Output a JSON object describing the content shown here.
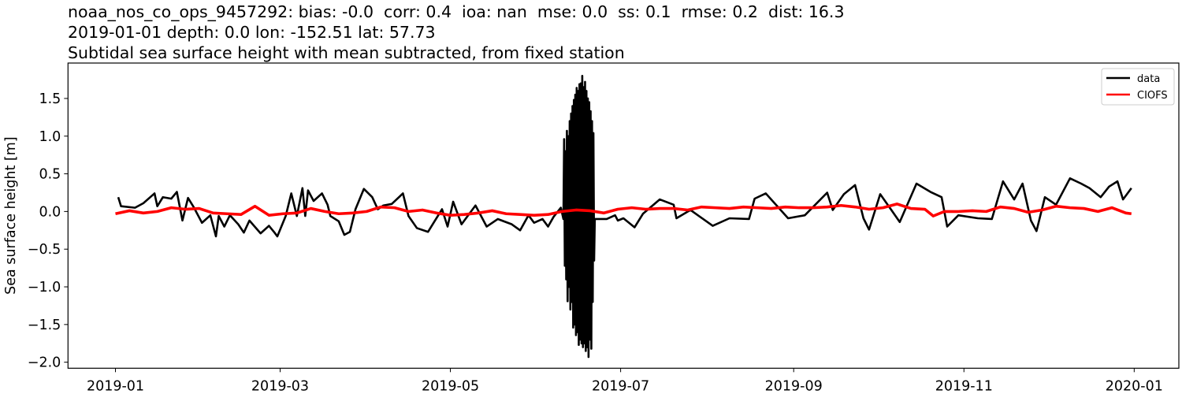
{
  "chart_data": {
    "type": "line",
    "title_lines": [
      "noaa_nos_co_ops_9457292: bias: -0.0  corr: 0.4  ioa: nan  mse: 0.0  ss: 0.1  rmse: 0.2  dist: 16.3",
      "2019-01-01 depth: 0.0 lon: -152.51 lat: 57.73",
      "Subtidal sea surface height with mean subtracted, from fixed station"
    ],
    "xlabel": "",
    "ylabel": "Sea surface height [m]",
    "xlim": [
      "2018-12-15",
      "2020-01-17"
    ],
    "ylim": [
      -2.08,
      1.97
    ],
    "xticks": [
      "2019-01",
      "2019-03",
      "2019-05",
      "2019-07",
      "2019-09",
      "2019-11",
      "2020-01"
    ],
    "yticks": [
      1.5,
      1.0,
      0.5,
      0.0,
      -0.5,
      -1.0,
      -1.5,
      -2.0
    ],
    "ytick_labels": [
      "1.5",
      "1.0",
      "0.5",
      "0.0",
      "−0.5",
      "−1.0",
      "−1.5",
      "−2.0"
    ],
    "grid": false,
    "legend_position": "top-right",
    "series": [
      {
        "name": "data",
        "color": "#000000",
        "points": [
          [
            "2019-01-02",
            0.19
          ],
          [
            "2019-01-03",
            0.07
          ],
          [
            "2019-01-08",
            0.05
          ],
          [
            "2019-01-11",
            0.11
          ],
          [
            "2019-01-15",
            0.24
          ],
          [
            "2019-01-16",
            0.07
          ],
          [
            "2019-01-18",
            0.19
          ],
          [
            "2019-01-21",
            0.17
          ],
          [
            "2019-01-23",
            0.26
          ],
          [
            "2019-01-25",
            -0.12
          ],
          [
            "2019-01-27",
            0.18
          ],
          [
            "2019-01-29",
            0.06
          ],
          [
            "2019-02-01",
            -0.15
          ],
          [
            "2019-02-04",
            -0.05
          ],
          [
            "2019-02-06",
            -0.33
          ],
          [
            "2019-02-07",
            -0.06
          ],
          [
            "2019-02-09",
            -0.2
          ],
          [
            "2019-02-11",
            -0.05
          ],
          [
            "2019-02-14",
            -0.17
          ],
          [
            "2019-02-16",
            -0.28
          ],
          [
            "2019-02-18",
            -0.12
          ],
          [
            "2019-02-22",
            -0.29
          ],
          [
            "2019-02-25",
            -0.19
          ],
          [
            "2019-02-27",
            -0.28
          ],
          [
            "2019-02-28",
            -0.33
          ],
          [
            "2019-03-03",
            -0.06
          ],
          [
            "2019-03-05",
            0.24
          ],
          [
            "2019-03-07",
            -0.06
          ],
          [
            "2019-03-09",
            0.31
          ],
          [
            "2019-03-10",
            -0.06
          ],
          [
            "2019-03-11",
            0.28
          ],
          [
            "2019-03-13",
            0.14
          ],
          [
            "2019-03-16",
            0.24
          ],
          [
            "2019-03-18",
            0.09
          ],
          [
            "2019-03-19",
            -0.06
          ],
          [
            "2019-03-22",
            -0.13
          ],
          [
            "2019-03-24",
            -0.31
          ],
          [
            "2019-03-26",
            -0.27
          ],
          [
            "2019-03-28",
            0.03
          ],
          [
            "2019-03-31",
            0.3
          ],
          [
            "2019-04-03",
            0.19
          ],
          [
            "2019-04-05",
            0.03
          ],
          [
            "2019-04-07",
            0.08
          ],
          [
            "2019-04-10",
            0.1
          ],
          [
            "2019-04-14",
            0.24
          ],
          [
            "2019-04-16",
            -0.06
          ],
          [
            "2019-04-19",
            -0.22
          ],
          [
            "2019-04-23",
            -0.27
          ],
          [
            "2019-04-25",
            -0.15
          ],
          [
            "2019-04-28",
            0.03
          ],
          [
            "2019-04-30",
            -0.2
          ],
          [
            "2019-05-02",
            0.13
          ],
          [
            "2019-05-05",
            -0.17
          ],
          [
            "2019-05-09",
            0.03
          ],
          [
            "2019-05-10",
            0.08
          ],
          [
            "2019-05-14",
            -0.2
          ],
          [
            "2019-05-18",
            -0.1
          ],
          [
            "2019-05-23",
            -0.17
          ],
          [
            "2019-05-26",
            -0.25
          ],
          [
            "2019-05-29",
            -0.05
          ],
          [
            "2019-05-31",
            -0.15
          ],
          [
            "2019-06-03",
            -0.1
          ],
          [
            "2019-06-05",
            -0.2
          ],
          [
            "2019-06-07",
            -0.07
          ],
          [
            "2019-06-09T14:00",
            0.05
          ],
          [
            "2019-06-10T12:00",
            -0.1
          ],
          [
            "2019-06-10T18:00",
            0.96
          ],
          [
            "2019-06-11T00:00",
            -0.72
          ],
          [
            "2019-06-11T06:00",
            0.8
          ],
          [
            "2019-06-11T12:00",
            -0.9
          ],
          [
            "2019-06-11T18:00",
            1.07
          ],
          [
            "2019-06-12T00:00",
            -1.19
          ],
          [
            "2019-06-12T06:00",
            1.0
          ],
          [
            "2019-06-12T12:00",
            -1.0
          ],
          [
            "2019-06-12T18:00",
            1.2
          ],
          [
            "2019-06-13T00:00",
            -1.3
          ],
          [
            "2019-06-13T06:00",
            1.3
          ],
          [
            "2019-06-13T12:00",
            -1.2
          ],
          [
            "2019-06-13T18:00",
            1.4
          ],
          [
            "2019-06-14T00:00",
            -1.54
          ],
          [
            "2019-06-14T06:00",
            1.48
          ],
          [
            "2019-06-14T12:00",
            -1.5
          ],
          [
            "2019-06-14T18:00",
            1.55
          ],
          [
            "2019-06-15T00:00",
            -1.64
          ],
          [
            "2019-06-15T06:00",
            1.64
          ],
          [
            "2019-06-15T12:00",
            -1.6
          ],
          [
            "2019-06-15T18:00",
            1.6
          ],
          [
            "2019-06-16T00:00",
            -1.77
          ],
          [
            "2019-06-16T06:00",
            1.69
          ],
          [
            "2019-06-16T12:00",
            -1.7
          ],
          [
            "2019-06-16T18:00",
            1.7
          ],
          [
            "2019-06-17T00:00",
            -1.75
          ],
          [
            "2019-06-17T06:00",
            1.8
          ],
          [
            "2019-06-17T12:00",
            -1.8
          ],
          [
            "2019-06-17T18:00",
            1.65
          ],
          [
            "2019-06-18T00:00",
            -1.75
          ],
          [
            "2019-06-18T06:00",
            1.72
          ],
          [
            "2019-06-18T12:00",
            -1.85
          ],
          [
            "2019-06-18T18:00",
            1.6
          ],
          [
            "2019-06-19T00:00",
            -1.8
          ],
          [
            "2019-06-19T06:00",
            1.5
          ],
          [
            "2019-06-19T12:00",
            -1.93
          ],
          [
            "2019-06-19T18:00",
            1.45
          ],
          [
            "2019-06-20T00:00",
            -1.7
          ],
          [
            "2019-06-20T06:00",
            1.33
          ],
          [
            "2019-06-20T12:00",
            -1.82
          ],
          [
            "2019-06-20T18:00",
            1.2
          ],
          [
            "2019-06-21T00:00",
            -1.2
          ],
          [
            "2019-06-21T06:00",
            1.04
          ],
          [
            "2019-06-21T12:00",
            -0.65
          ],
          [
            "2019-06-21T18:00",
            -0.1
          ],
          [
            "2019-06-23",
            -0.1
          ],
          [
            "2019-06-26",
            -0.1
          ],
          [
            "2019-06-29",
            -0.05
          ],
          [
            "2019-06-30",
            -0.12
          ],
          [
            "2019-07-02",
            -0.09
          ],
          [
            "2019-07-06",
            -0.21
          ],
          [
            "2019-07-09",
            -0.03
          ],
          [
            "2019-07-15",
            0.16
          ],
          [
            "2019-07-20",
            0.09
          ],
          [
            "2019-07-21",
            -0.09
          ],
          [
            "2019-07-26",
            0.02
          ],
          [
            "2019-08-03",
            -0.19
          ],
          [
            "2019-08-09",
            -0.09
          ],
          [
            "2019-08-16",
            -0.1
          ],
          [
            "2019-08-18",
            0.17
          ],
          [
            "2019-08-22",
            0.24
          ],
          [
            "2019-08-30",
            -0.09
          ],
          [
            "2019-09-05",
            -0.05
          ],
          [
            "2019-09-13",
            0.25
          ],
          [
            "2019-09-15",
            0.02
          ],
          [
            "2019-09-19",
            0.23
          ],
          [
            "2019-09-23",
            0.35
          ],
          [
            "2019-09-26",
            -0.09
          ],
          [
            "2019-09-28",
            -0.24
          ],
          [
            "2019-10-02",
            0.23
          ],
          [
            "2019-10-06",
            0.02
          ],
          [
            "2019-10-09",
            -0.14
          ],
          [
            "2019-10-15",
            0.37
          ],
          [
            "2019-10-20",
            0.26
          ],
          [
            "2019-10-24",
            0.19
          ],
          [
            "2019-10-26",
            -0.2
          ],
          [
            "2019-10-30",
            -0.05
          ],
          [
            "2019-11-06",
            -0.09
          ],
          [
            "2019-11-11",
            -0.1
          ],
          [
            "2019-11-15",
            0.4
          ],
          [
            "2019-11-19",
            0.16
          ],
          [
            "2019-11-22",
            0.37
          ],
          [
            "2019-11-25",
            -0.12
          ],
          [
            "2019-11-27",
            -0.26
          ],
          [
            "2019-11-30",
            0.19
          ],
          [
            "2019-12-04",
            0.09
          ],
          [
            "2019-12-09",
            0.44
          ],
          [
            "2019-12-13",
            0.37
          ],
          [
            "2019-12-16",
            0.31
          ],
          [
            "2019-12-20",
            0.19
          ],
          [
            "2019-12-23",
            0.33
          ],
          [
            "2019-12-26",
            0.4
          ],
          [
            "2019-12-28",
            0.16
          ],
          [
            "2019-12-31",
            0.31
          ]
        ]
      },
      {
        "name": "CIOFS",
        "color": "#ff0000",
        "points": [
          [
            "2019-01-01",
            -0.03
          ],
          [
            "2019-01-06",
            0.01
          ],
          [
            "2019-01-11",
            -0.02
          ],
          [
            "2019-01-16",
            0.0
          ],
          [
            "2019-01-21",
            0.05
          ],
          [
            "2019-01-26",
            0.03
          ],
          [
            "2019-01-31",
            0.04
          ],
          [
            "2019-02-05",
            -0.02
          ],
          [
            "2019-02-10",
            -0.03
          ],
          [
            "2019-02-15",
            -0.04
          ],
          [
            "2019-02-20",
            0.07
          ],
          [
            "2019-02-25",
            -0.05
          ],
          [
            "2019-03-02",
            -0.03
          ],
          [
            "2019-03-07",
            -0.02
          ],
          [
            "2019-03-12",
            0.04
          ],
          [
            "2019-03-17",
            0.0
          ],
          [
            "2019-03-22",
            -0.03
          ],
          [
            "2019-03-27",
            -0.02
          ],
          [
            "2019-04-01",
            0.0
          ],
          [
            "2019-04-06",
            0.06
          ],
          [
            "2019-04-11",
            0.05
          ],
          [
            "2019-04-16",
            0.0
          ],
          [
            "2019-04-21",
            0.02
          ],
          [
            "2019-04-26",
            -0.02
          ],
          [
            "2019-05-01",
            -0.05
          ],
          [
            "2019-05-06",
            -0.04
          ],
          [
            "2019-05-11",
            -0.02
          ],
          [
            "2019-05-16",
            0.01
          ],
          [
            "2019-05-21",
            -0.03
          ],
          [
            "2019-05-26",
            -0.04
          ],
          [
            "2019-05-31",
            -0.05
          ],
          [
            "2019-06-05",
            -0.04
          ],
          [
            "2019-06-10",
            0.0
          ],
          [
            "2019-06-15",
            0.02
          ],
          [
            "2019-06-20",
            0.01
          ],
          [
            "2019-06-25",
            -0.02
          ],
          [
            "2019-06-30",
            0.03
          ],
          [
            "2019-07-05",
            0.05
          ],
          [
            "2019-07-10",
            0.03
          ],
          [
            "2019-07-15",
            0.04
          ],
          [
            "2019-07-20",
            0.04
          ],
          [
            "2019-07-25",
            0.02
          ],
          [
            "2019-07-30",
            0.06
          ],
          [
            "2019-08-04",
            0.05
          ],
          [
            "2019-08-09",
            0.04
          ],
          [
            "2019-08-14",
            0.06
          ],
          [
            "2019-08-19",
            0.05
          ],
          [
            "2019-08-24",
            0.04
          ],
          [
            "2019-08-29",
            0.06
          ],
          [
            "2019-09-03",
            0.05
          ],
          [
            "2019-09-08",
            0.05
          ],
          [
            "2019-09-13",
            0.06
          ],
          [
            "2019-09-18",
            0.08
          ],
          [
            "2019-09-23",
            0.06
          ],
          [
            "2019-09-28",
            0.03
          ],
          [
            "2019-10-03",
            0.05
          ],
          [
            "2019-10-08",
            0.1
          ],
          [
            "2019-10-13",
            0.04
          ],
          [
            "2019-10-18",
            0.03
          ],
          [
            "2019-10-21",
            -0.06
          ],
          [
            "2019-10-25",
            0.0
          ],
          [
            "2019-10-30",
            0.0
          ],
          [
            "2019-11-04",
            0.01
          ],
          [
            "2019-11-09",
            0.0
          ],
          [
            "2019-11-14",
            0.06
          ],
          [
            "2019-11-19",
            0.04
          ],
          [
            "2019-11-24",
            -0.01
          ],
          [
            "2019-11-29",
            0.02
          ],
          [
            "2019-12-04",
            0.07
          ],
          [
            "2019-12-09",
            0.05
          ],
          [
            "2019-12-14",
            0.04
          ],
          [
            "2019-12-19",
            0.0
          ],
          [
            "2019-12-24",
            0.05
          ],
          [
            "2019-12-29",
            -0.02
          ],
          [
            "2019-12-31",
            -0.03
          ]
        ]
      }
    ]
  }
}
